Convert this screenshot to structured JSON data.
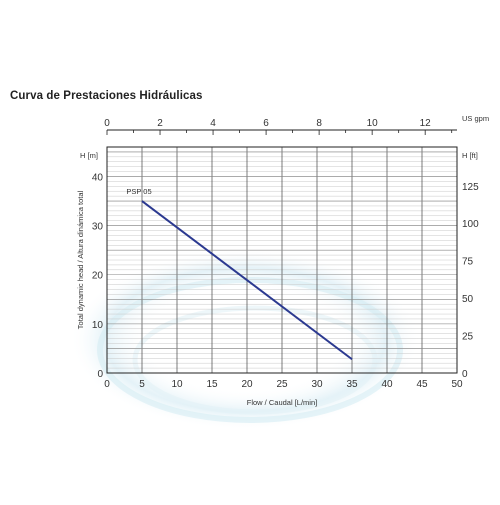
{
  "title": "Curva de Prestaciones Hidráulicas",
  "chart_data": {
    "type": "line",
    "title": "Curva de Prestaciones Hidráulicas",
    "xlabel": "Flow / Caudal [L/min]",
    "ylabel": "Total dynamic head / Altura dinámica total",
    "x_ticks": [
      "0",
      "5",
      "10",
      "15",
      "20",
      "25",
      "30",
      "35",
      "40",
      "45",
      "50"
    ],
    "y_ticks": [
      "0",
      "10",
      "20",
      "30",
      "40"
    ],
    "xlim": [
      0,
      50
    ],
    "ylim": [
      0,
      46
    ],
    "grid": true,
    "secondary_x": {
      "label": "US gpm",
      "ticks": [
        "0",
        "2",
        "4",
        "6",
        "8",
        "10",
        "12"
      ],
      "lim": [
        0,
        13.2
      ]
    },
    "left_unit": "H [m]",
    "right_unit": "H [ft]",
    "secondary_y_ticks": [
      "0",
      "25",
      "50",
      "75",
      "100",
      "125"
    ],
    "secondary_ylim": [
      0,
      150.9
    ],
    "series": [
      {
        "name": "PSP 05",
        "color": "#2b3990",
        "x": [
          5,
          35
        ],
        "y": [
          35,
          2.8
        ]
      }
    ]
  }
}
